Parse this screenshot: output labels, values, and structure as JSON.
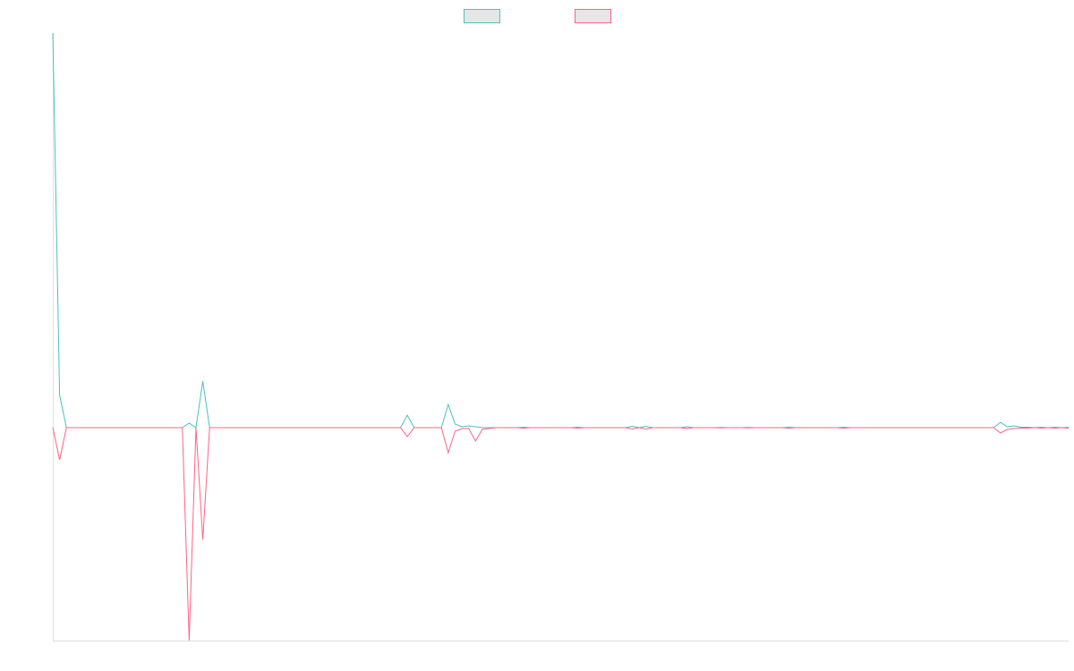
{
  "chart_data": {
    "type": "line",
    "categories": [
      null,
      null,
      null,
      null,
      null,
      null,
      null,
      null,
      null,
      null,
      null,
      null,
      null,
      null,
      null,
      null,
      null,
      null,
      null,
      null,
      null,
      null,
      null,
      null,
      null,
      null,
      null,
      null,
      null,
      null,
      null,
      null,
      null,
      null,
      null,
      null,
      null,
      null,
      null,
      null,
      null,
      null,
      null,
      null,
      null,
      null,
      null,
      null,
      null,
      null,
      null,
      null,
      null,
      null,
      null,
      null,
      null,
      null,
      null,
      null,
      null,
      null,
      null,
      null,
      null,
      null,
      null,
      null,
      null,
      null,
      null,
      null,
      null,
      null,
      null,
      null,
      null,
      null,
      null,
      null,
      null,
      null,
      null,
      null,
      null,
      null,
      null,
      null,
      null,
      null,
      null,
      null,
      null,
      null,
      null,
      null,
      null,
      null,
      null,
      null,
      null,
      null,
      null,
      null,
      null,
      null,
      null,
      null,
      null,
      null,
      null,
      null,
      null,
      null,
      null,
      null,
      null,
      null,
      null,
      null,
      null,
      null,
      null,
      null,
      null,
      null,
      null,
      null,
      null,
      null,
      null,
      null,
      null,
      null,
      null,
      null,
      null,
      null,
      null,
      null,
      null,
      null,
      null,
      null,
      null,
      null,
      null,
      null,
      null,
      null
    ],
    "ylim": [
      -238,
      441
    ],
    "legend": "top",
    "series": [
      {
        "color": "#4bc0c0",
        "values": [
          441,
          36,
          0,
          0,
          0,
          0,
          0,
          0,
          0,
          0,
          0,
          0,
          0,
          0,
          0,
          0,
          0,
          0,
          0,
          0,
          5,
          0,
          52,
          0,
          0,
          0,
          0,
          0,
          0,
          0,
          0,
          0,
          0,
          0,
          0,
          0,
          0,
          0,
          0,
          0,
          0,
          0,
          0,
          0,
          0,
          0,
          0,
          0,
          0,
          0,
          0,
          0,
          14,
          0,
          0,
          0,
          0,
          0,
          26,
          4,
          1,
          2,
          1,
          0,
          0,
          0,
          0,
          0,
          0,
          0.5,
          0,
          0,
          0,
          0,
          0,
          0,
          0,
          0.5,
          0,
          0,
          0,
          0,
          0,
          0,
          0,
          1.5,
          0,
          1.5,
          0,
          0,
          0,
          0,
          0,
          1,
          0,
          0,
          0,
          0,
          0.3,
          0,
          0,
          0,
          0.3,
          0,
          0,
          0,
          0,
          0,
          0.5,
          0,
          0,
          0,
          0,
          0,
          0,
          0,
          0.5,
          0,
          0,
          0,
          0,
          0,
          0,
          0,
          0,
          0,
          0,
          0,
          0,
          0,
          0,
          0,
          0,
          0,
          0,
          0,
          0,
          0,
          0,
          6,
          1,
          2,
          0.5,
          0.5,
          0,
          0.5,
          0,
          0.5,
          0,
          0.5
        ]
      },
      {
        "color": "#ff6384",
        "values": [
          0,
          -36,
          0,
          0,
          0,
          0,
          0,
          0,
          0,
          0,
          0,
          0,
          0,
          0,
          0,
          0,
          0,
          0,
          0,
          0,
          -238,
          0,
          -125,
          0,
          0,
          0,
          0,
          0,
          0,
          0,
          0,
          0,
          0,
          0,
          0,
          0,
          0,
          0,
          0,
          0,
          0,
          0,
          0,
          0,
          0,
          0,
          0,
          0,
          0,
          0,
          0,
          0,
          -10,
          0,
          0,
          0,
          0,
          0,
          -28,
          -4,
          -1,
          -1,
          -15,
          -2,
          -1,
          0,
          0,
          0,
          0,
          -0.5,
          0,
          0,
          0,
          0,
          0,
          0,
          0,
          -0.5,
          0,
          0,
          0,
          0,
          0,
          0,
          0,
          -1.5,
          0,
          -1.5,
          0,
          0,
          0,
          0,
          0,
          -1,
          0,
          0,
          0,
          0,
          -0.3,
          0,
          0,
          0,
          -0.3,
          0,
          0,
          0,
          0,
          0,
          -0.5,
          0,
          0,
          0,
          0,
          0,
          0,
          0,
          -0.5,
          0,
          0,
          0,
          0,
          0,
          0,
          0,
          0,
          0,
          0,
          0,
          0,
          0,
          0,
          0,
          0,
          0,
          0,
          0,
          0,
          0,
          0,
          -6,
          -2,
          -1,
          -0.5,
          -0.5,
          0,
          -0.5,
          0,
          -0.5,
          0,
          -0.5
        ]
      }
    ]
  }
}
